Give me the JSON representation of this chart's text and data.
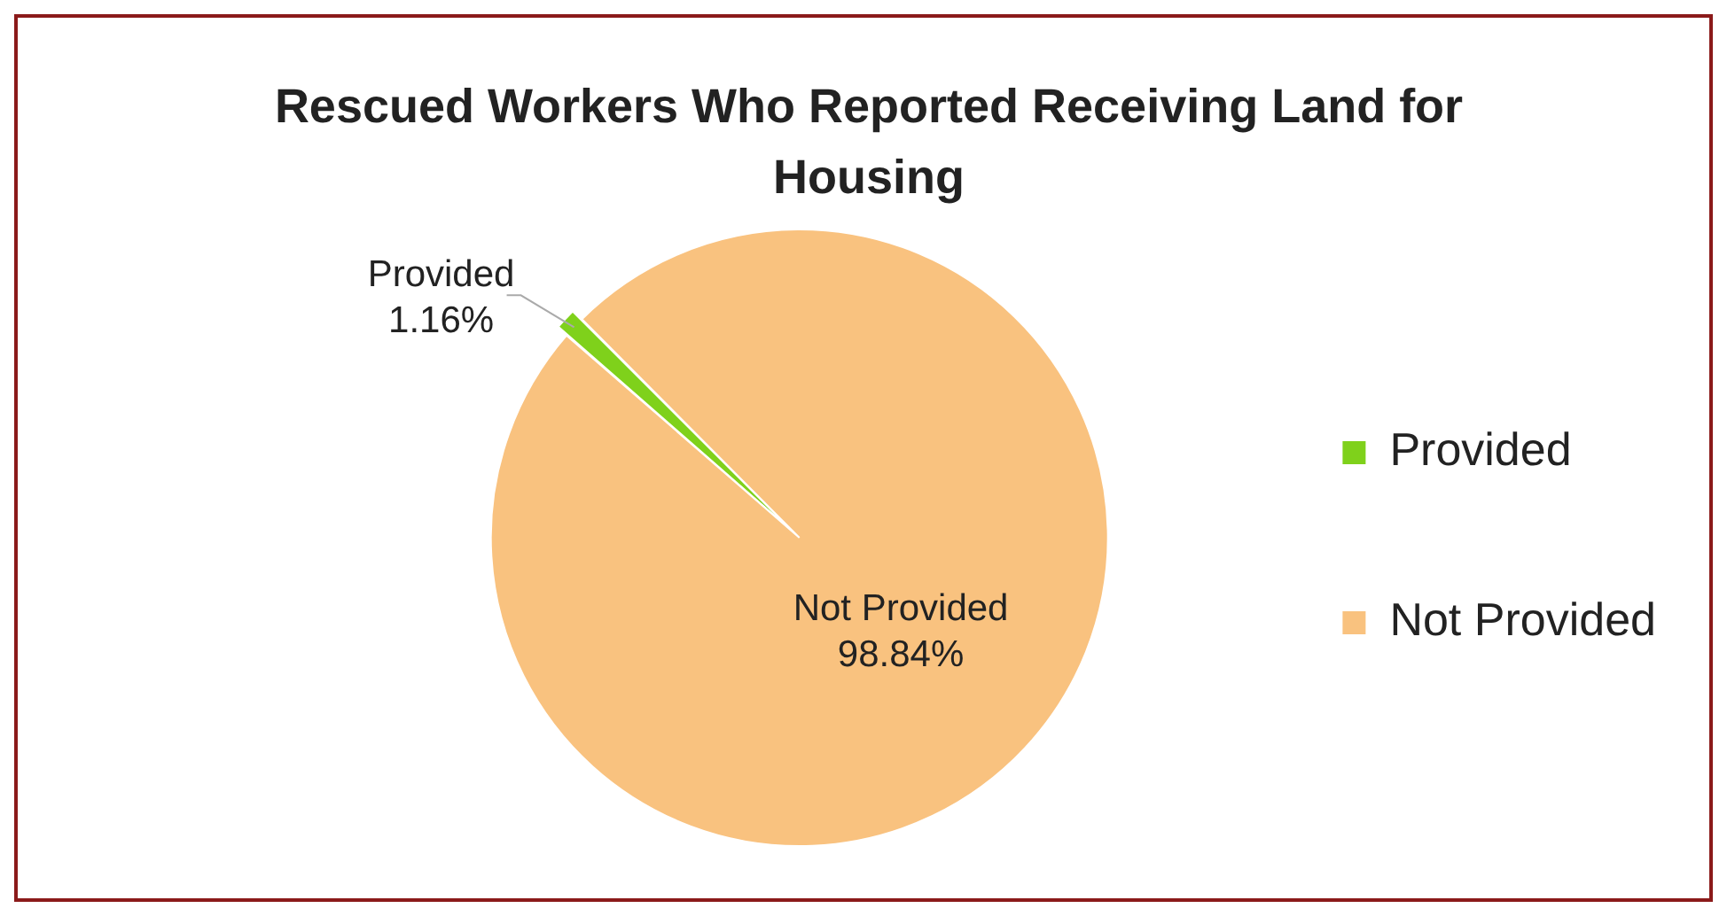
{
  "chart_data": {
    "type": "pie",
    "title": "Rescued Workers Who Reported Receiving Land for Housing",
    "categories": [
      "Provided",
      "Not Provided"
    ],
    "values": [
      1.16,
      98.84
    ],
    "colors": [
      "#7fd11b",
      "#f9c27f"
    ],
    "value_labels": [
      "1.16%",
      "98.84%"
    ],
    "legend": "right"
  }
}
